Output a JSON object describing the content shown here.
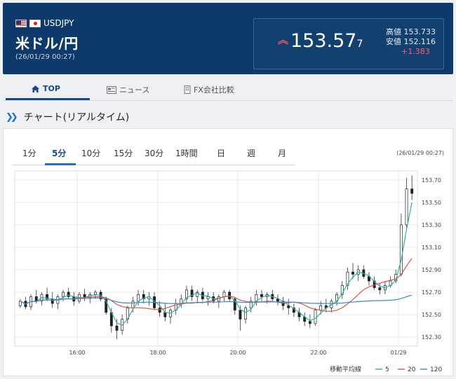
{
  "header": {
    "symbol": "USDJPY",
    "name": "米ドル/円",
    "datetime": "(26/01/29 00:27)",
    "price_main": "153.57",
    "price_small": "7",
    "high_label": "高値",
    "high_value": "153.733",
    "low_label": "安値",
    "low_value": "152.116",
    "change": "+1.383",
    "arrow_icon": "double-up-arrow-icon"
  },
  "tabs": [
    {
      "label": "TOP",
      "icon": "home-icon"
    },
    {
      "label": "ニュース",
      "icon": "news-icon"
    },
    {
      "label": "FX会社比較",
      "icon": "building-icon"
    }
  ],
  "section": {
    "title": "チャート(リアルタイム)"
  },
  "timeframes": [
    "1分",
    "5分",
    "10分",
    "15分",
    "30分",
    "1時間",
    "日",
    "週",
    "月"
  ],
  "chart_time": "(26/01/29 00:27)",
  "chart_data": {
    "type": "candlestick",
    "y_ticks": [
      "153.70",
      "153.50",
      "153.30",
      "153.10",
      "152.90",
      "152.70",
      "152.50",
      "152.30"
    ],
    "x_ticks": [
      "16:00",
      "18:00",
      "20:00",
      "22:00",
      "01/29"
    ],
    "ylim": [
      152.22,
      153.78
    ],
    "ma_legend": {
      "label": "移動平均線",
      "items": [
        {
          "name": "5",
          "color": "#2bb3a3"
        },
        {
          "name": "20",
          "color": "#d9534f"
        },
        {
          "name": "120",
          "color": "#3a87c8"
        }
      ]
    },
    "candles": [
      [
        152.58,
        152.64,
        152.56,
        152.62
      ],
      [
        152.62,
        152.66,
        152.55,
        152.57
      ],
      [
        152.57,
        152.68,
        152.54,
        152.66
      ],
      [
        152.66,
        152.72,
        152.6,
        152.62
      ],
      [
        152.62,
        152.7,
        152.58,
        152.68
      ],
      [
        152.68,
        152.74,
        152.62,
        152.64
      ],
      [
        152.64,
        152.7,
        152.56,
        152.6
      ],
      [
        152.6,
        152.68,
        152.55,
        152.66
      ],
      [
        152.66,
        152.72,
        152.62,
        152.7
      ],
      [
        152.7,
        152.74,
        152.64,
        152.66
      ],
      [
        152.66,
        152.7,
        152.58,
        152.62
      ],
      [
        152.62,
        152.7,
        152.6,
        152.68
      ],
      [
        152.68,
        152.73,
        152.62,
        152.65
      ],
      [
        152.65,
        152.7,
        152.6,
        152.68
      ],
      [
        152.68,
        152.72,
        152.64,
        152.7
      ],
      [
        152.7,
        152.72,
        152.62,
        152.64
      ],
      [
        152.64,
        152.66,
        152.5,
        152.52
      ],
      [
        152.52,
        152.56,
        152.34,
        152.4
      ],
      [
        152.4,
        152.46,
        152.28,
        152.36
      ],
      [
        152.36,
        152.5,
        152.32,
        152.46
      ],
      [
        152.46,
        152.58,
        152.42,
        152.56
      ],
      [
        152.56,
        152.66,
        152.52,
        152.62
      ],
      [
        152.62,
        152.72,
        152.58,
        152.68
      ],
      [
        152.68,
        152.72,
        152.6,
        152.64
      ],
      [
        152.64,
        152.7,
        152.58,
        152.66
      ],
      [
        152.66,
        152.7,
        152.54,
        152.56
      ],
      [
        152.56,
        152.62,
        152.48,
        152.52
      ],
      [
        152.52,
        152.6,
        152.44,
        152.48
      ],
      [
        152.48,
        152.56,
        152.42,
        152.54
      ],
      [
        152.54,
        152.64,
        152.5,
        152.6
      ],
      [
        152.6,
        152.68,
        152.56,
        152.64
      ],
      [
        152.64,
        152.76,
        152.6,
        152.72
      ],
      [
        152.72,
        152.76,
        152.62,
        152.66
      ],
      [
        152.66,
        152.72,
        152.6,
        152.7
      ],
      [
        152.7,
        152.74,
        152.62,
        152.64
      ],
      [
        152.64,
        152.7,
        152.58,
        152.66
      ],
      [
        152.66,
        152.7,
        152.6,
        152.62
      ],
      [
        152.62,
        152.68,
        152.56,
        152.66
      ],
      [
        152.66,
        152.72,
        152.62,
        152.7
      ],
      [
        152.7,
        152.72,
        152.62,
        152.64
      ],
      [
        152.64,
        152.66,
        152.5,
        152.54
      ],
      [
        152.54,
        152.58,
        152.36,
        152.46
      ],
      [
        152.46,
        152.58,
        152.42,
        152.56
      ],
      [
        152.56,
        152.66,
        152.52,
        152.62
      ],
      [
        152.62,
        152.72,
        152.58,
        152.68
      ],
      [
        152.68,
        152.72,
        152.62,
        152.66
      ],
      [
        152.66,
        152.7,
        152.6,
        152.68
      ],
      [
        152.68,
        152.72,
        152.62,
        152.64
      ],
      [
        152.64,
        152.68,
        152.58,
        152.62
      ],
      [
        152.62,
        152.66,
        152.54,
        152.58
      ],
      [
        152.58,
        152.64,
        152.5,
        152.56
      ],
      [
        152.56,
        152.6,
        152.48,
        152.52
      ],
      [
        152.52,
        152.56,
        152.44,
        152.48
      ],
      [
        152.48,
        152.52,
        152.4,
        152.44
      ],
      [
        152.44,
        152.5,
        152.38,
        152.42
      ],
      [
        152.42,
        152.56,
        152.4,
        152.54
      ],
      [
        152.54,
        152.62,
        152.5,
        152.58
      ],
      [
        152.58,
        152.64,
        152.52,
        152.56
      ],
      [
        152.56,
        152.64,
        152.52,
        152.62
      ],
      [
        152.62,
        152.7,
        152.58,
        152.68
      ],
      [
        152.68,
        152.8,
        152.64,
        152.76
      ],
      [
        152.76,
        152.92,
        152.72,
        152.88
      ],
      [
        152.88,
        152.96,
        152.82,
        152.86
      ],
      [
        152.86,
        152.94,
        152.8,
        152.9
      ],
      [
        152.9,
        152.94,
        152.82,
        152.84
      ],
      [
        152.84,
        152.88,
        152.76,
        152.8
      ],
      [
        152.8,
        152.84,
        152.72,
        152.74
      ],
      [
        152.74,
        152.78,
        152.68,
        152.72
      ],
      [
        152.72,
        152.8,
        152.68,
        152.76
      ],
      [
        152.76,
        152.84,
        152.74,
        152.8
      ],
      [
        152.8,
        152.9,
        152.78,
        152.86
      ],
      [
        152.86,
        153.4,
        152.84,
        153.3
      ],
      [
        153.3,
        153.72,
        153.26,
        153.62
      ],
      [
        153.62,
        153.74,
        153.52,
        153.58
      ]
    ]
  }
}
